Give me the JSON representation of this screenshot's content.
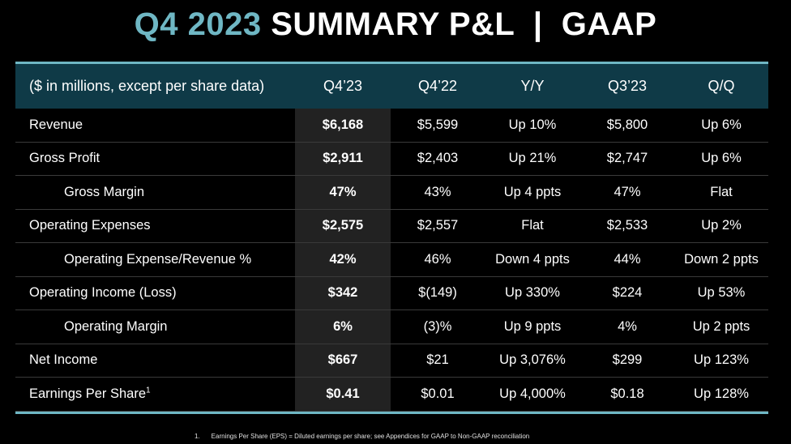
{
  "title": {
    "accent": "Q4 2023",
    "rest": " SUMMARY P&L  |  GAAP"
  },
  "header": [
    "($ in millions, except per share data)",
    "Q4’23",
    "Q4’22",
    "Y/Y",
    "Q3’23",
    "Q/Q"
  ],
  "rows": [
    {
      "label": "Revenue",
      "cells": [
        "$6,168",
        "$5,599",
        "Up 10%",
        "$5,800",
        "Up 6%"
      ]
    },
    {
      "label": "Gross Profit",
      "cells": [
        "$2,911",
        "$2,403",
        "Up 21%",
        "$2,747",
        "Up 6%"
      ]
    },
    {
      "label": "Gross Margin",
      "cells": [
        "47%",
        "43%",
        "Up 4 ppts",
        "47%",
        "Flat"
      ]
    },
    {
      "label": "Operating Expenses",
      "cells": [
        "$2,575",
        "$2,557",
        "Flat",
        "$2,533",
        "Up 2%"
      ]
    },
    {
      "label": "Operating Expense/Revenue %",
      "cells": [
        "42%",
        "46%",
        "Down 4 ppts",
        "44%",
        "Down 2 ppts"
      ]
    },
    {
      "label": "Operating Income (Loss)",
      "cells": [
        "$342",
        "$(149)",
        "Up 330%",
        "$224",
        "Up 53%"
      ]
    },
    {
      "label": "Operating Margin",
      "cells": [
        "6%",
        "(3)%",
        "Up 9 ppts",
        "4%",
        "Up 2 ppts"
      ]
    },
    {
      "label": "Net Income",
      "cells": [
        "$667",
        "$21",
        "Up 3,076%",
        "$299",
        "Up 123%"
      ]
    },
    {
      "label": "Earnings Per Share",
      "sup": "1",
      "cells": [
        "$0.41",
        "$0.01",
        "Up 4,000%",
        "$0.18",
        "Up 128%"
      ]
    }
  ],
  "footnote": {
    "num": "1.",
    "text": "Earnings Per Share (EPS) = Diluted earnings per share; see Appendices for GAAP to Non-GAAP reconciliation"
  },
  "colors": {
    "accent": "#6fb7c4",
    "header_bg": "#0f3a47",
    "highlight_col": "#222222"
  }
}
